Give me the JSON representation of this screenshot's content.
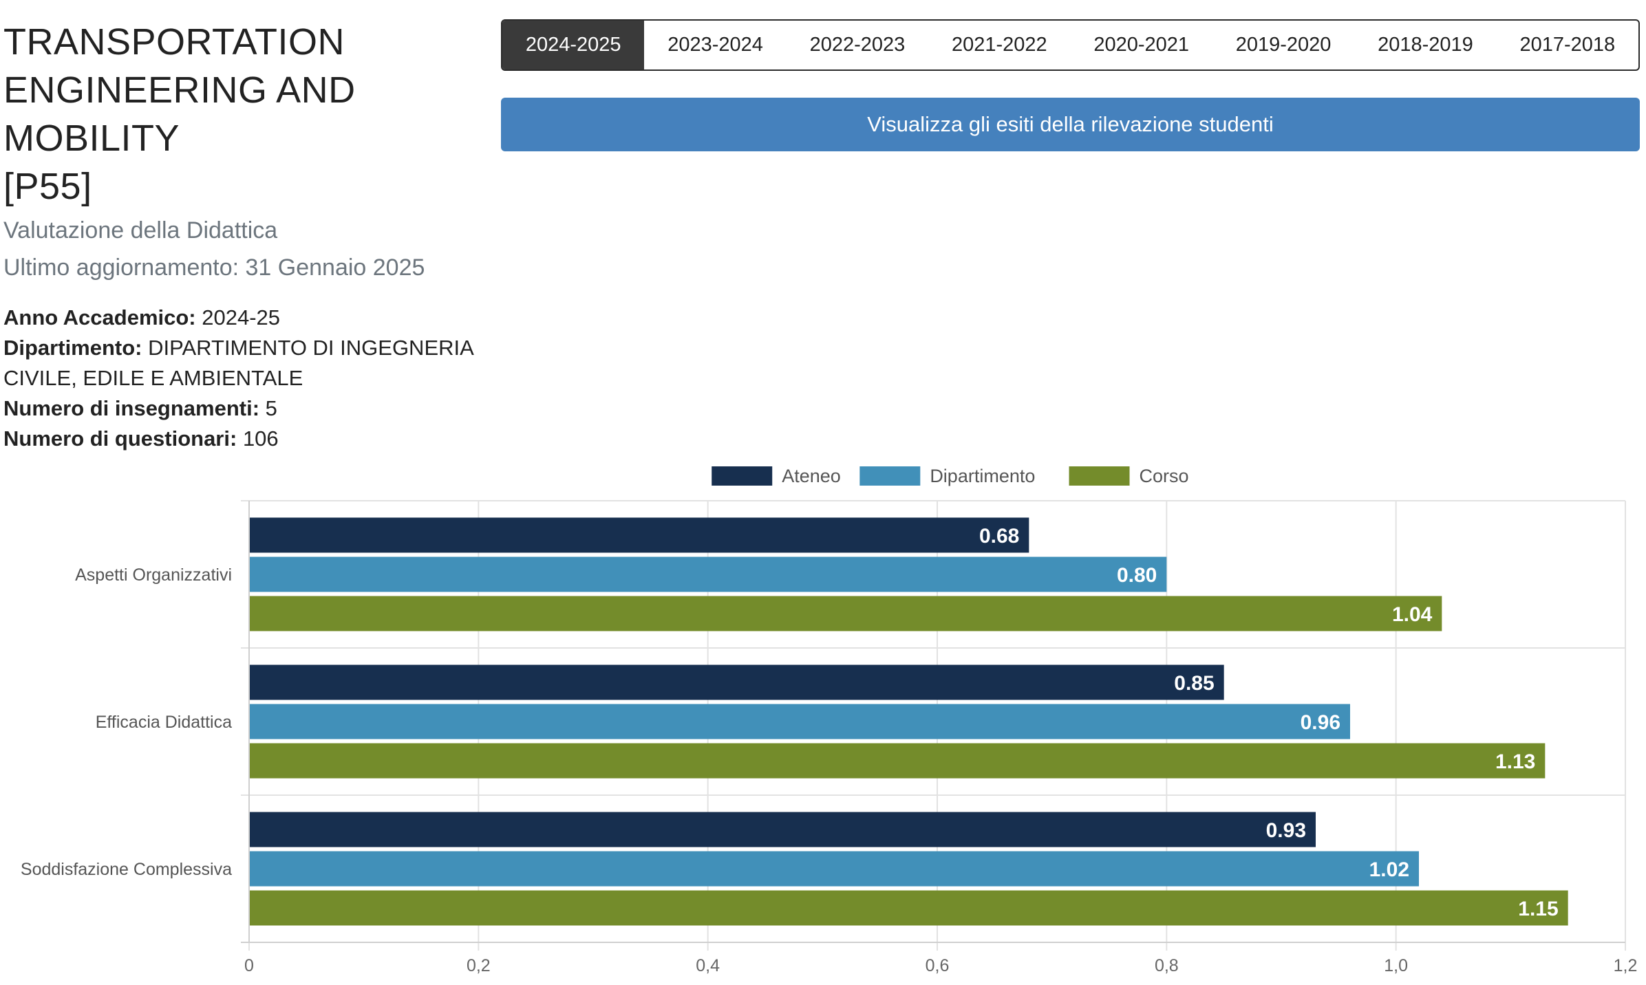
{
  "header": {
    "title_lines": [
      "TRANSPORTATION",
      "ENGINEERING AND MOBILITY",
      "[P55]"
    ],
    "subtitle": "Valutazione della Didattica",
    "updated": "Ultimo aggiornamento: 31 Gennaio 2025"
  },
  "info": {
    "anno_label": "Anno Accademico:",
    "anno_value": "2024-25",
    "dip_label": "Dipartimento:",
    "dip_value_line1": "DIPARTIMENTO DI INGEGNERIA",
    "dip_value_line2": "CIVILE, EDILE E AMBIENTALE",
    "insegnamenti_label": "Numero di insegnamenti:",
    "insegnamenti_value": "5",
    "questionari_label": "Numero di questionari:",
    "questionari_value": "106"
  },
  "year_tabs": [
    "2024-2025",
    "2023-2024",
    "2022-2023",
    "2021-2022",
    "2020-2021",
    "2019-2020",
    "2018-2019",
    "2017-2018"
  ],
  "active_tab": "2024-2025",
  "action_button": "Visualizza gli esiti della rilevazione studenti",
  "colors": {
    "ateneo": "#172f4f",
    "dipartimento": "#4190b9",
    "corso": "#748c2b",
    "tab_active": "#3a3a3a",
    "button": "#4581bd"
  },
  "chart_data": {
    "type": "bar",
    "orientation": "horizontal",
    "categories": [
      "Aspetti Organizzativi",
      "Efficacia Didattica",
      "Soddisfazione Complessiva"
    ],
    "series": [
      {
        "name": "Ateneo",
        "values": [
          0.68,
          0.85,
          0.93
        ],
        "labels": [
          "0.68",
          "0.85",
          "0.93"
        ],
        "color": "#172f4f"
      },
      {
        "name": "Dipartimento",
        "values": [
          0.8,
          0.96,
          1.02
        ],
        "labels": [
          "0.80",
          "0.96",
          "1.02"
        ],
        "color": "#4190b9"
      },
      {
        "name": "Corso",
        "values": [
          1.04,
          1.13,
          1.15
        ],
        "labels": [
          "1.04",
          "1.13",
          "1.15"
        ],
        "color": "#748c2b"
      }
    ],
    "xlim": [
      0,
      1.2
    ],
    "xticks": [
      0,
      0.2,
      0.4,
      0.6,
      0.8,
      1.0,
      1.2
    ],
    "xtick_labels": [
      "0",
      "0,2",
      "0,4",
      "0,6",
      "0,8",
      "1,0",
      "1,2"
    ],
    "grid": true,
    "legend_position": "top-center"
  }
}
